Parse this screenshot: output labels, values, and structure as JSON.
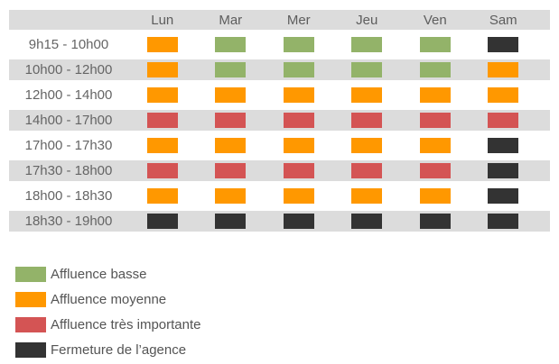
{
  "chart_data": {
    "type": "heatmap",
    "title": "",
    "x_labels": [
      "Lun",
      "Mar",
      "Mer",
      "Jeu",
      "Ven",
      "Sam"
    ],
    "y_labels": [
      "9h15 - 10h00",
      "10h00 - 12h00",
      "12h00 - 14h00",
      "14h00 - 17h00",
      "17h00 - 17h30",
      "17h30 - 18h00",
      "18h00 - 18h30",
      "18h30 - 19h00"
    ],
    "values": [
      [
        "medium",
        "low",
        "low",
        "low",
        "low",
        "closed"
      ],
      [
        "medium",
        "low",
        "low",
        "low",
        "low",
        "medium"
      ],
      [
        "medium",
        "medium",
        "medium",
        "medium",
        "medium",
        "medium"
      ],
      [
        "high",
        "high",
        "high",
        "high",
        "high",
        "high"
      ],
      [
        "medium",
        "medium",
        "medium",
        "medium",
        "medium",
        "closed"
      ],
      [
        "high",
        "high",
        "high",
        "high",
        "high",
        "closed"
      ],
      [
        "medium",
        "medium",
        "medium",
        "medium",
        "medium",
        "closed"
      ],
      [
        "closed",
        "closed",
        "closed",
        "closed",
        "closed",
        "closed"
      ]
    ],
    "levels": {
      "low": {
        "label": "Affluence basse",
        "color": "#93B369"
      },
      "medium": {
        "label": "Affluence moyenne",
        "color": "#FF9800"
      },
      "high": {
        "label": "Affluence très importante",
        "color": "#D45454"
      },
      "closed": {
        "label": "Fermeture de l’agence",
        "color": "#333333"
      }
    },
    "legend_order": [
      "low",
      "medium",
      "high",
      "closed"
    ],
    "legend_position": "bottom-left",
    "stripe_color": "#DCDCDC",
    "grid": false
  }
}
